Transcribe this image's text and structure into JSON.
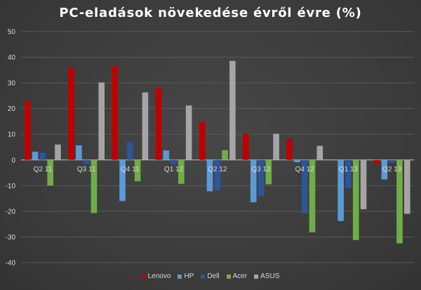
{
  "chart_data": {
    "type": "bar",
    "title": "PC-eladások növekedése évről évre (%)",
    "categories": [
      "Q2 11",
      "Q3 11",
      "Q4 11",
      "Q1 12",
      "Q2 12",
      "Q3 12",
      "Q4 12",
      "Q1 13",
      "Q2 13"
    ],
    "series": [
      {
        "name": "Lenovo",
        "color": "#c00000",
        "values": [
          23,
          36,
          36.5,
          28,
          14.8,
          10.2,
          8.1,
          0,
          -1.5
        ]
      },
      {
        "name": "HP",
        "color": "#5b9bd5",
        "values": [
          3.2,
          5.7,
          -16,
          3.7,
          -12.2,
          -16.5,
          -0.9,
          -23.8,
          -7.6
        ]
      },
      {
        "name": "Dell",
        "color": "#2e5597",
        "values": [
          2.8,
          -1.5,
          7,
          -1.6,
          -11.8,
          -14,
          -20.8,
          -11,
          -1
        ]
      },
      {
        "name": "Acer",
        "color": "#70ad47",
        "values": [
          -10,
          -20.7,
          -8.3,
          -9.3,
          3.8,
          -9.5,
          -28.2,
          -31.2,
          -32.5
        ]
      },
      {
        "name": "ASUS",
        "color": "#a5a5a5",
        "values": [
          6,
          30.2,
          26.3,
          21.2,
          38.6,
          10.2,
          5.5,
          -19.2,
          -21
        ]
      }
    ],
    "ylim": [
      -40,
      50
    ],
    "yticks": [
      50,
      40,
      30,
      20,
      10,
      0,
      -10,
      -20,
      -30,
      -40
    ],
    "grid": true,
    "legend_position": "bottom"
  }
}
